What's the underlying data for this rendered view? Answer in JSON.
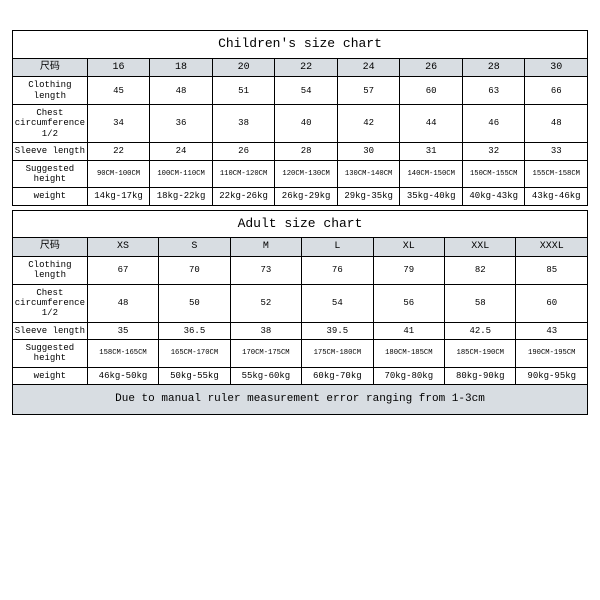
{
  "colors": {
    "header_bg": "#d8dde2",
    "note_bg": "#d8dde2",
    "border": "#000000",
    "background": "#ffffff"
  },
  "children": {
    "title": "Children's size chart",
    "first_col_header": "尺码",
    "sizes": [
      "16",
      "18",
      "20",
      "22",
      "24",
      "26",
      "28",
      "30"
    ],
    "rows": [
      {
        "label": "Clothing length",
        "values": [
          "45",
          "48",
          "51",
          "54",
          "57",
          "60",
          "63",
          "66"
        ]
      },
      {
        "label": "Chest circumference 1/2",
        "values": [
          "34",
          "36",
          "38",
          "40",
          "42",
          "44",
          "46",
          "48"
        ]
      },
      {
        "label": "Sleeve length",
        "values": [
          "22",
          "24",
          "26",
          "28",
          "30",
          "31",
          "32",
          "33"
        ]
      },
      {
        "label": "Suggested height",
        "values": [
          "90CM-100CM",
          "100CM-110CM",
          "110CM-120CM",
          "120CM-130CM",
          "130CM-140CM",
          "140CM-150CM",
          "150CM-155CM",
          "155CM-158CM"
        ],
        "small": true
      },
      {
        "label": "weight",
        "values": [
          "14kg-17kg",
          "18kg-22kg",
          "22kg-26kg",
          "26kg-29kg",
          "29kg-35kg",
          "35kg-40kg",
          "40kg-43kg",
          "43kg-46kg"
        ]
      }
    ]
  },
  "adult": {
    "title": "Adult size chart",
    "first_col_header": "尺码",
    "sizes": [
      "XS",
      "S",
      "M",
      "L",
      "XL",
      "XXL",
      "XXXL"
    ],
    "rows": [
      {
        "label": "Clothing length",
        "values": [
          "67",
          "70",
          "73",
          "76",
          "79",
          "82",
          "85"
        ]
      },
      {
        "label": "Chest circumference 1/2",
        "values": [
          "48",
          "50",
          "52",
          "54",
          "56",
          "58",
          "60"
        ]
      },
      {
        "label": "Sleeve length",
        "values": [
          "35",
          "36.5",
          "38",
          "39.5",
          "41",
          "42.5",
          "43"
        ]
      },
      {
        "label": "Suggested height",
        "values": [
          "158CM-165CM",
          "165CM-170CM",
          "170CM-175CM",
          "175CM-180CM",
          "180CM-185CM",
          "185CM-190CM",
          "190CM-195CM"
        ],
        "small": true
      },
      {
        "label": "weight",
        "values": [
          "46kg-50kg",
          "50kg-55kg",
          "55kg-60kg",
          "60kg-70kg",
          "70kg-80kg",
          "80kg-90kg",
          "90kg-95kg"
        ]
      }
    ],
    "note": "Due to manual ruler measurement error ranging from 1-3cm"
  }
}
